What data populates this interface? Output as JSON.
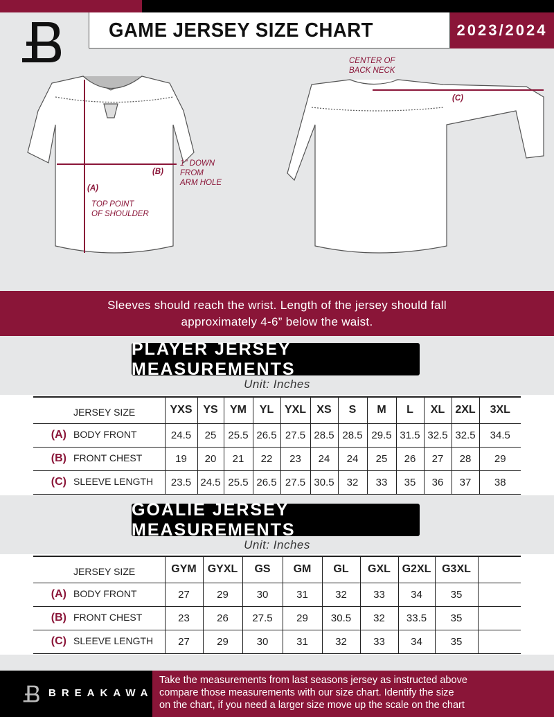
{
  "header": {
    "title": "GAME JERSEY SIZE CHART",
    "season": "2023/2024",
    "brand_color": "#8a1538"
  },
  "diagram": {
    "front": {
      "label_a": "(A)",
      "note_a": "TOP POINT\nOF SHOULDER",
      "label_b": "(B)",
      "note_b": "1\" DOWN\nFROM\nARM HOLE"
    },
    "back": {
      "label_c": "(C)",
      "note_c": "CENTER OF\nBACK NECK"
    }
  },
  "banner": {
    "text": "Sleeves should reach the wrist. Length of the jersey should fall approximately 4-6” below the waist."
  },
  "player": {
    "title": "PLAYER JERSEY MEASUREMENTS",
    "unit": "Unit: Inches",
    "size_header": "JERSEY SIZE",
    "sizes": [
      "YXS",
      "YS",
      "YM",
      "YL",
      "YXL",
      "XS",
      "S",
      "M",
      "L",
      "XL",
      "2XL",
      "3XL"
    ],
    "rows": [
      {
        "letter": "(A)",
        "label": "BODY FRONT",
        "values": [
          "24.5",
          "25",
          "25.5",
          "26.5",
          "27.5",
          "28.5",
          "28.5",
          "29.5",
          "31.5",
          "32.5",
          "32.5",
          "34.5"
        ]
      },
      {
        "letter": "(B)",
        "label": "FRONT CHEST",
        "values": [
          "19",
          "20",
          "21",
          "22",
          "23",
          "24",
          "24",
          "25",
          "26",
          "27",
          "28",
          "29"
        ]
      },
      {
        "letter": "(C)",
        "label": "SLEEVE LENGTH",
        "values": [
          "23.5",
          "24.5",
          "25.5",
          "26.5",
          "27.5",
          "30.5",
          "32",
          "33",
          "35",
          "36",
          "37",
          "38"
        ]
      }
    ]
  },
  "goalie": {
    "title": "GOALIE JERSEY MEASUREMENTS",
    "unit": "Unit: Inches",
    "size_header": "JERSEY SIZE",
    "sizes": [
      "GYM",
      "GYXL",
      "GS",
      "GM",
      "GL",
      "GXL",
      "G2XL",
      "G3XL",
      ""
    ],
    "rows": [
      {
        "letter": "(A)",
        "label": "BODY FRONT",
        "values": [
          "27",
          "29",
          "30",
          "31",
          "32",
          "33",
          "34",
          "35",
          ""
        ]
      },
      {
        "letter": "(B)",
        "label": "FRONT CHEST",
        "values": [
          "23",
          "26",
          "27.5",
          "29",
          "30.5",
          "32",
          "33.5",
          "35",
          ""
        ]
      },
      {
        "letter": "(C)",
        "label": "SLEEVE LENGTH",
        "values": [
          "27",
          "29",
          "30",
          "31",
          "32",
          "33",
          "34",
          "35",
          ""
        ]
      }
    ]
  },
  "footer": {
    "brand": "BREAKAWAY",
    "text": "Take the measurements from last seasons jersey as instructed above\ncompare those measurements  with our size chart. Identify the size\non the chart, if you need a larger size move up the scale on the chart"
  }
}
